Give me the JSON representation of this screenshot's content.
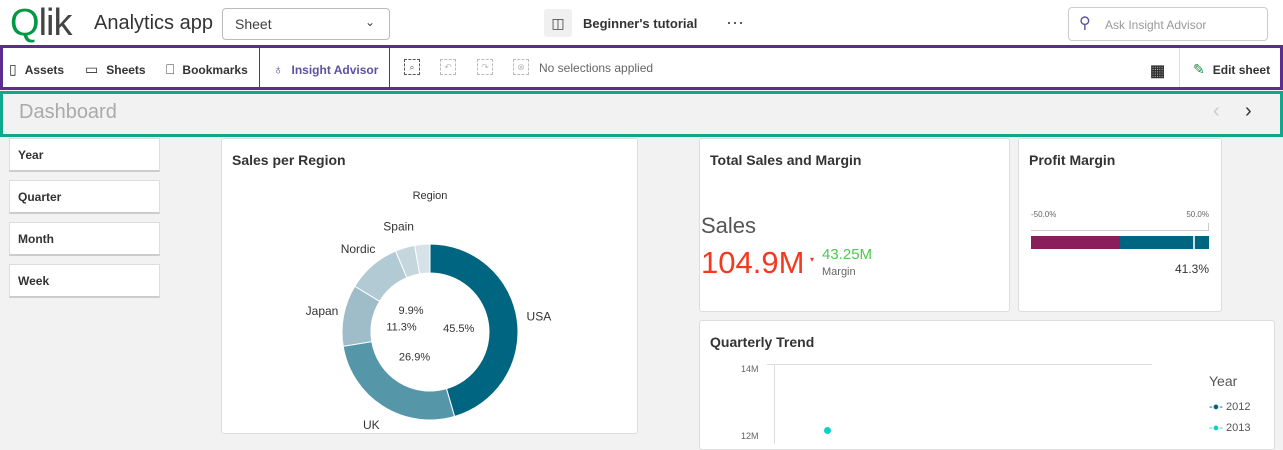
{
  "header": {
    "logo": "Qlik",
    "app_title": "Analytics app",
    "sheet_select": "Sheet",
    "tutorial": "Beginner's tutorial",
    "more": "···",
    "ask_placeholder": "Ask Insight Advisor"
  },
  "toolbar": {
    "assets": "Assets",
    "sheets": "Sheets",
    "bookmarks": "Bookmarks",
    "insight_advisor": "Insight Advisor",
    "selections": "No selections applied",
    "edit_sheet": "Edit sheet"
  },
  "sheet": {
    "title": "Dashboard"
  },
  "filters": [
    "Year",
    "Quarter",
    "Month",
    "Week"
  ],
  "colors": {
    "accent": "#5c2d91",
    "sheetbar": "#10a88d",
    "kpi_sales": "#f5391f",
    "kpi_margin": "#4bc94b",
    "bar_neg": "#8a1e5b",
    "bar_pos": "#006580"
  },
  "chart_data": [
    {
      "type": "pie",
      "title": "Sales per Region",
      "legend_title": "Region",
      "donut": true,
      "slices": [
        {
          "name": "USA",
          "value": 45.5,
          "label": "45.5%",
          "color": "#006580"
        },
        {
          "name": "UK",
          "value": 26.9,
          "label": "26.9%",
          "color": "#5597a8"
        },
        {
          "name": "Japan",
          "value": 11.3,
          "label": "11.3%",
          "color": "#9fbdc9"
        },
        {
          "name": "Nordic",
          "value": 9.9,
          "label": "9.9%",
          "color": "#b2cad4"
        },
        {
          "name": "Spain",
          "value": 3.6,
          "label": "",
          "color": "#c5d6dd"
        },
        {
          "name": "",
          "value": 2.8,
          "label": "",
          "color": "#d6e2e7"
        }
      ]
    },
    {
      "type": "kpi",
      "title": "Total Sales and Margin",
      "main_label": "Sales",
      "main_value": "104.9M",
      "secondary_value": "43.25M",
      "secondary_label": "Margin"
    },
    {
      "type": "bar",
      "title": "Profit Margin",
      "min_label": "-50.0%",
      "max_label": "50.0%",
      "min": -50,
      "max": 50,
      "value": 41.3,
      "value_label": "41.3%"
    },
    {
      "type": "line",
      "title": "Quarterly Trend",
      "legend_title": "Year",
      "y_ticks": [
        "14M",
        "12M"
      ],
      "series": [
        {
          "name": "2012",
          "color": "#006580"
        },
        {
          "name": "2013",
          "color": "#10cfc9"
        }
      ]
    }
  ]
}
